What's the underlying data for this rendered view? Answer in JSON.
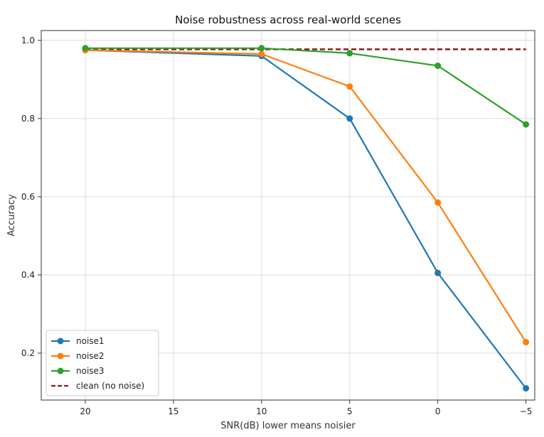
{
  "chart_data": {
    "type": "line",
    "title": "Noise robustness across real-world scenes",
    "xlabel": "SNR(dB)  lower  means  noisier",
    "ylabel": "Accuracy",
    "x": [
      20,
      10,
      5,
      0,
      -5
    ],
    "x_ticks": [
      20,
      15,
      10,
      5,
      0,
      -5
    ],
    "x_tick_labels": [
      "20",
      "15",
      "10",
      "5",
      "0",
      "−5"
    ],
    "xlim": [
      22.5,
      -5.5
    ],
    "y_ticks": [
      0.2,
      0.4,
      0.6,
      0.8,
      1.0
    ],
    "y_tick_labels": [
      "0.2",
      "0.4",
      "0.6",
      "0.8",
      "1.0"
    ],
    "ylim": [
      0.08,
      1.025
    ],
    "grid": true,
    "legend_position": "lower-left",
    "series": [
      {
        "name": "noise1",
        "values": [
          0.975,
          0.96,
          0.8,
          0.405,
          0.11
        ],
        "color": "#1f77b4",
        "style": "solid",
        "marker": true
      },
      {
        "name": "noise2",
        "values": [
          0.975,
          0.965,
          0.882,
          0.585,
          0.228
        ],
        "color": "#ff7f0e",
        "style": "solid",
        "marker": true
      },
      {
        "name": "noise3",
        "values": [
          0.98,
          0.98,
          0.967,
          0.935,
          0.785
        ],
        "color": "#2ca02c",
        "style": "solid",
        "marker": true
      },
      {
        "name": "clean (no noise)",
        "values": [
          0.977,
          0.977,
          0.977,
          0.977,
          0.977
        ],
        "color": "#8b1a1a",
        "style": "dashed",
        "marker": false
      }
    ]
  }
}
